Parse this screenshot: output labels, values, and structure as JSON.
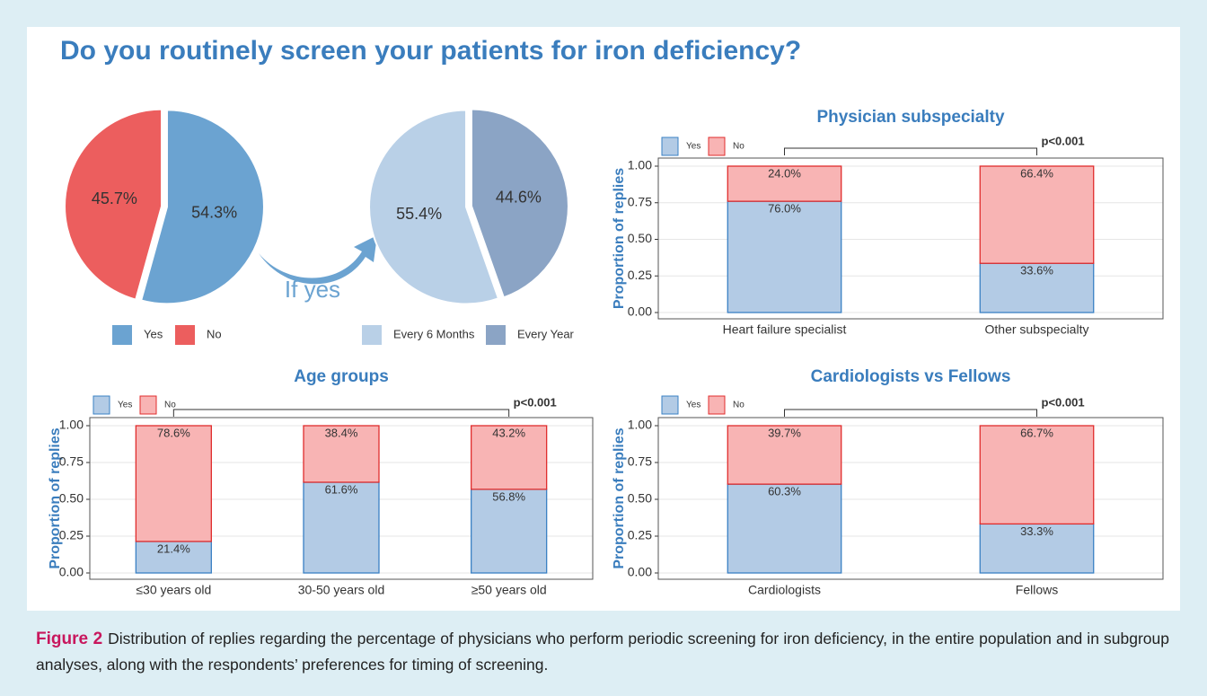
{
  "title": "Do you routinely screen your patients for iron deficiency?",
  "caption": {
    "label": "Figure 2",
    "text": "Distribution of replies regarding the percentage of physicians who perform periodic screening for iron deficiency, in the entire population and in subgroup analyses, along with the respondents’ preferences for timing of screening."
  },
  "chart_data": [
    {
      "type": "pie",
      "categories": [
        "Yes",
        "No"
      ],
      "values": [
        54.3,
        45.7
      ],
      "value_labels": [
        "54.3%",
        "45.7%"
      ],
      "colors": [
        "#6ba3d1",
        "#ec5e5e"
      ],
      "clockwise": true
    },
    {
      "type": "pie",
      "categories": [
        "Every 6 Months",
        "Every Year"
      ],
      "values": [
        55.4,
        44.6
      ],
      "value_labels": [
        "55.4%",
        "44.6%"
      ],
      "colors": [
        "#b9d0e7",
        "#8ba4c5"
      ],
      "clockwise": false,
      "annotation": "If yes"
    },
    {
      "type": "bar",
      "stacked": true,
      "title": "Physician subspecialty",
      "ylabel": "Proportion of replies",
      "categories": [
        "Heart failure specialist",
        "Other subspecialty"
      ],
      "series": [
        {
          "name": "Yes",
          "color": "#b3cbe5",
          "edge": "#3a80c4",
          "values": [
            0.76,
            0.336
          ],
          "value_labels": [
            "76.0%",
            "33.6%"
          ]
        },
        {
          "name": "No",
          "color": "#f8b4b4",
          "edge": "#e02c2c",
          "values": [
            0.24,
            0.664
          ],
          "value_labels": [
            "24.0%",
            "66.4%"
          ]
        }
      ],
      "ylim": [
        0,
        1
      ],
      "yticks": [
        {
          "value": 0,
          "label": "0.00"
        },
        0.25,
        {
          "value": 0.5,
          "label": "0.50"
        },
        0.75,
        {
          "value": 1,
          "label": "1.00"
        }
      ],
      "grid": true,
      "annotation": "p<0.001"
    },
    {
      "type": "bar",
      "stacked": true,
      "title": "Age groups",
      "ylabel": "Proportion of replies",
      "categories": [
        "≤30 years old",
        "30-50 years old",
        "≥50 years old"
      ],
      "series": [
        {
          "name": "Yes",
          "color": "#b3cbe5",
          "edge": "#3a80c4",
          "values": [
            0.214,
            0.616,
            0.568
          ],
          "value_labels": [
            "21.4%",
            "61.6%",
            "56.8%"
          ]
        },
        {
          "name": "No",
          "color": "#f8b4b4",
          "edge": "#e02c2c",
          "values": [
            0.786,
            0.384,
            0.432
          ],
          "value_labels": [
            "78.6%",
            "38.4%",
            "43.2%"
          ]
        }
      ],
      "ylim": [
        0,
        1
      ],
      "yticks": [
        {
          "value": 0,
          "label": "0.00"
        },
        0.25,
        {
          "value": 0.5,
          "label": "0.50"
        },
        0.75,
        {
          "value": 1,
          "label": "1.00"
        }
      ],
      "grid": true,
      "annotation": "p<0.001"
    },
    {
      "type": "bar",
      "stacked": true,
      "title": "Cardiologists vs Fellows",
      "ylabel": "Proportion of replies",
      "categories": [
        "Cardiologists",
        "Fellows"
      ],
      "series": [
        {
          "name": "Yes",
          "color": "#b3cbe5",
          "edge": "#3a80c4",
          "values": [
            0.603,
            0.333
          ],
          "value_labels": [
            "60.3%",
            "33.3%"
          ]
        },
        {
          "name": "No",
          "color": "#f8b4b4",
          "edge": "#e02c2c",
          "values": [
            0.397,
            0.667
          ],
          "value_labels": [
            "39.7%",
            "66.7%"
          ]
        }
      ],
      "ylim": [
        0,
        1
      ],
      "yticks": [
        {
          "value": 0,
          "label": "0.00"
        },
        0.25,
        {
          "value": 0.5,
          "label": "0.50"
        },
        0.75,
        {
          "value": 1,
          "label": "1.00"
        }
      ],
      "grid": true,
      "annotation": "p<0.001"
    }
  ]
}
